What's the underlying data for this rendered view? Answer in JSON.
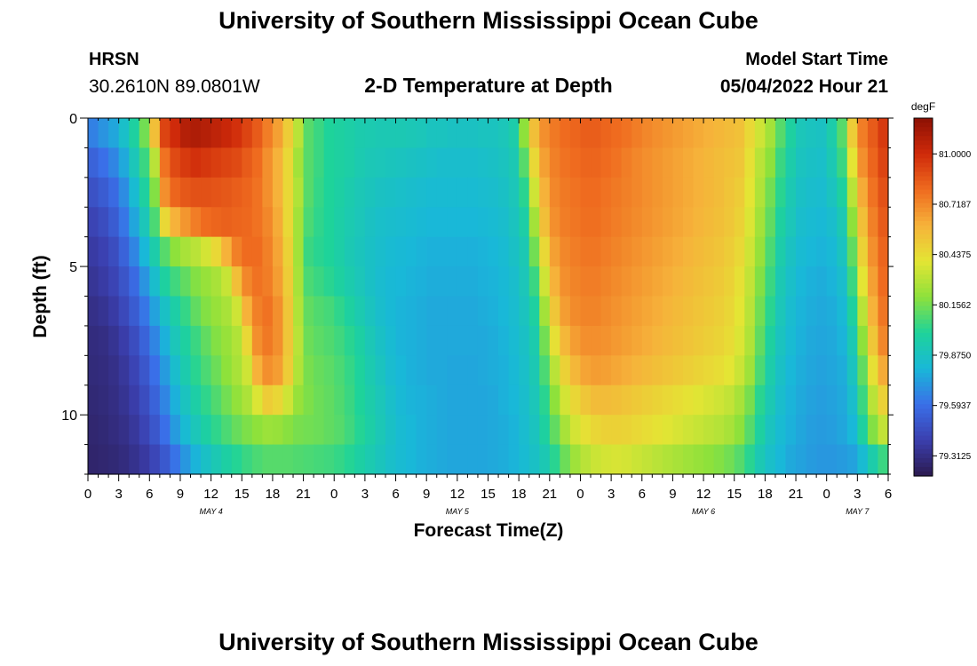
{
  "header": {
    "title": "University of Southern Mississippi Ocean Cube",
    "station": "HRSN",
    "coords": "30.2610N  89.0801W",
    "subtitle": "2-D Temperature at Depth",
    "start_label": "Model Start Time",
    "start_value": "05/04/2022 Hour 21"
  },
  "footer": {
    "title": "University of Southern Mississippi Ocean Cube"
  },
  "chart_data": {
    "type": "heatmap",
    "title": "2-D Temperature at Depth",
    "xlabel": "Forecast Time(Z)",
    "ylabel": "Depth (ft)",
    "x_ticks": [
      "0",
      "3",
      "6",
      "9",
      "12",
      "15",
      "18",
      "21",
      "0",
      "3",
      "6",
      "9",
      "12",
      "15",
      "18",
      "21",
      "0",
      "3",
      "6",
      "9",
      "12",
      "15",
      "18",
      "21",
      "0",
      "3",
      "6"
    ],
    "day_labels": [
      {
        "label": "MAY 4",
        "hour": 12
      },
      {
        "label": "MAY 5",
        "hour": 36
      },
      {
        "label": "MAY 6",
        "hour": 60
      },
      {
        "label": "MAY 7",
        "hour": 75
      }
    ],
    "x_range_hours": [
      0,
      78
    ],
    "y_ticks": [
      0,
      5,
      10
    ],
    "y_range_ft": [
      0,
      12
    ],
    "colorbar": {
      "unit": "degF",
      "ticks": [
        "81.0000",
        "80.7187",
        "80.4375",
        "80.1562",
        "79.8750",
        "79.5937",
        "79.3125"
      ],
      "vmin": 79.2,
      "vmax": 81.2,
      "colors": [
        "#2b1a4f",
        "#3b3fae",
        "#3a6fe8",
        "#19b8d8",
        "#1ed39a",
        "#8ee13b",
        "#e4e534",
        "#f6b23a",
        "#ef6b1f",
        "#cf2a0a",
        "#8c1004"
      ]
    },
    "hours": [
      0,
      1,
      2,
      3,
      4,
      5,
      6,
      7,
      8,
      9,
      10,
      11,
      12,
      13,
      14,
      15,
      16,
      17,
      18,
      19,
      20,
      21,
      22,
      23,
      24,
      25,
      26,
      27,
      28,
      29,
      30,
      31,
      32,
      33,
      34,
      35,
      36,
      37,
      38,
      39,
      40,
      41,
      42,
      43,
      44,
      45,
      46,
      47,
      48,
      49,
      50,
      51,
      52,
      53,
      54,
      55,
      56,
      57,
      58,
      59,
      60,
      61,
      62,
      63,
      64,
      65,
      66,
      67,
      68,
      69,
      70,
      71,
      72,
      73,
      74,
      75,
      76,
      77
    ],
    "depth_levels_ft": [
      0,
      1,
      2,
      3,
      4,
      5,
      6,
      7,
      8,
      9,
      10,
      11
    ],
    "values": [
      [
        79.65,
        79.7,
        79.75,
        79.85,
        79.98,
        80.15,
        80.55,
        80.92,
        81.0,
        81.08,
        81.1,
        81.08,
        81.05,
        81.02,
        80.98,
        80.92,
        80.85,
        80.75,
        80.65,
        80.5,
        80.3,
        80.1,
        80.05,
        80.0,
        79.98,
        79.96,
        79.94,
        79.93,
        79.92,
        79.92,
        79.92,
        79.91,
        79.9,
        79.88,
        79.88,
        79.87,
        79.87,
        79.87,
        79.88,
        79.88,
        79.9,
        79.95,
        80.2,
        80.55,
        80.7,
        80.76,
        80.8,
        80.82,
        80.84,
        80.84,
        80.82,
        80.8,
        80.78,
        80.75,
        80.72,
        80.7,
        80.68,
        80.66,
        80.64,
        80.62,
        80.6,
        80.58,
        80.56,
        80.54,
        80.45,
        80.35,
        80.25,
        80.1,
        79.98,
        79.9,
        79.88,
        79.87,
        79.95,
        80.1,
        80.5,
        80.75,
        80.85,
        80.95
      ],
      [
        79.55,
        79.6,
        79.66,
        79.76,
        79.9,
        80.05,
        80.3,
        80.78,
        80.9,
        80.95,
        80.98,
        80.96,
        80.94,
        80.92,
        80.9,
        80.85,
        80.8,
        80.7,
        80.6,
        80.45,
        80.25,
        80.1,
        80.05,
        80.0,
        79.98,
        79.96,
        79.93,
        79.91,
        79.9,
        79.89,
        79.88,
        79.87,
        79.86,
        79.85,
        79.84,
        79.84,
        79.84,
        79.84,
        79.85,
        79.86,
        79.88,
        79.92,
        80.1,
        80.45,
        80.65,
        80.74,
        80.78,
        80.8,
        80.82,
        80.82,
        80.8,
        80.78,
        80.75,
        80.72,
        80.7,
        80.68,
        80.66,
        80.64,
        80.62,
        80.6,
        80.58,
        80.56,
        80.54,
        80.52,
        80.42,
        80.3,
        80.2,
        80.05,
        79.95,
        79.88,
        79.86,
        79.85,
        79.92,
        80.05,
        80.4,
        80.7,
        80.82,
        80.92
      ],
      [
        79.48,
        79.52,
        79.58,
        79.68,
        79.82,
        79.98,
        80.18,
        80.7,
        80.82,
        80.86,
        80.88,
        80.88,
        80.87,
        80.86,
        80.84,
        80.82,
        80.78,
        80.7,
        80.6,
        80.45,
        80.28,
        80.1,
        80.04,
        80.0,
        79.97,
        79.94,
        79.91,
        79.89,
        79.87,
        79.86,
        79.85,
        79.84,
        79.83,
        79.82,
        79.82,
        79.82,
        79.82,
        79.82,
        79.83,
        79.84,
        79.86,
        79.9,
        80.02,
        80.35,
        80.6,
        80.72,
        80.76,
        80.78,
        80.8,
        80.8,
        80.78,
        80.76,
        80.74,
        80.72,
        80.7,
        80.68,
        80.66,
        80.64,
        80.62,
        80.6,
        80.58,
        80.56,
        80.53,
        80.5,
        80.4,
        80.28,
        80.15,
        80.02,
        79.92,
        79.86,
        79.84,
        79.83,
        79.88,
        79.98,
        80.3,
        80.62,
        80.78,
        80.88
      ],
      [
        79.42,
        79.46,
        79.52,
        79.62,
        79.75,
        79.9,
        80.08,
        80.45,
        80.6,
        80.68,
        80.75,
        80.8,
        80.82,
        80.83,
        80.82,
        80.81,
        80.78,
        80.72,
        80.62,
        80.45,
        80.25,
        80.08,
        80.03,
        80.0,
        79.96,
        79.93,
        79.9,
        79.87,
        79.85,
        79.84,
        79.83,
        79.82,
        79.81,
        79.8,
        79.8,
        79.8,
        79.8,
        79.8,
        79.81,
        79.82,
        79.84,
        79.88,
        79.96,
        80.25,
        80.55,
        80.7,
        80.75,
        80.77,
        80.79,
        80.79,
        80.77,
        80.75,
        80.73,
        80.71,
        80.69,
        80.67,
        80.65,
        80.63,
        80.61,
        80.59,
        80.57,
        80.55,
        80.52,
        80.48,
        80.38,
        80.25,
        80.12,
        79.98,
        79.9,
        79.84,
        79.82,
        79.81,
        79.84,
        79.92,
        80.2,
        80.55,
        80.74,
        80.85
      ],
      [
        79.38,
        79.41,
        79.46,
        79.55,
        79.66,
        79.8,
        79.95,
        80.1,
        80.2,
        80.26,
        80.3,
        80.36,
        80.45,
        80.6,
        80.74,
        80.8,
        80.8,
        80.74,
        80.64,
        80.48,
        80.25,
        80.05,
        80.02,
        80.0,
        79.96,
        79.92,
        79.89,
        79.86,
        79.84,
        79.82,
        79.81,
        79.8,
        79.79,
        79.78,
        79.78,
        79.78,
        79.78,
        79.78,
        79.79,
        79.8,
        79.82,
        79.86,
        79.92,
        80.15,
        80.45,
        80.65,
        80.72,
        80.75,
        80.77,
        80.77,
        80.75,
        80.73,
        80.71,
        80.69,
        80.67,
        80.65,
        80.63,
        80.61,
        80.59,
        80.57,
        80.55,
        80.53,
        80.5,
        80.45,
        80.35,
        80.22,
        80.08,
        79.95,
        79.87,
        79.82,
        79.8,
        79.79,
        79.81,
        79.88,
        80.12,
        80.48,
        80.7,
        80.82
      ],
      [
        79.35,
        79.38,
        79.42,
        79.49,
        79.58,
        79.7,
        79.84,
        79.98,
        80.06,
        80.12,
        80.18,
        80.22,
        80.26,
        80.33,
        80.55,
        80.72,
        80.78,
        80.75,
        80.66,
        80.5,
        80.26,
        80.08,
        80.05,
        80.02,
        79.98,
        79.94,
        79.9,
        79.86,
        79.83,
        79.81,
        79.8,
        79.79,
        79.78,
        79.77,
        79.77,
        79.77,
        79.77,
        79.77,
        79.78,
        79.79,
        79.81,
        79.84,
        79.9,
        80.05,
        80.35,
        80.6,
        80.7,
        80.73,
        80.75,
        80.75,
        80.73,
        80.71,
        80.69,
        80.67,
        80.65,
        80.63,
        80.61,
        80.59,
        80.57,
        80.55,
        80.53,
        80.51,
        80.48,
        80.42,
        80.32,
        80.18,
        80.05,
        79.92,
        79.85,
        79.8,
        79.78,
        79.77,
        79.79,
        79.84,
        80.05,
        80.4,
        80.65,
        80.8
      ],
      [
        79.32,
        79.34,
        79.38,
        79.44,
        79.52,
        79.62,
        79.74,
        79.86,
        79.96,
        80.04,
        80.12,
        80.18,
        80.22,
        80.26,
        80.35,
        80.6,
        80.74,
        80.78,
        80.7,
        80.52,
        80.28,
        80.12,
        80.09,
        80.07,
        80.03,
        79.98,
        79.93,
        79.88,
        79.84,
        79.81,
        79.79,
        79.78,
        79.77,
        79.76,
        79.76,
        79.76,
        79.76,
        79.76,
        79.77,
        79.78,
        79.8,
        79.83,
        79.88,
        79.98,
        80.25,
        80.52,
        80.66,
        80.71,
        80.73,
        80.73,
        80.71,
        80.69,
        80.67,
        80.65,
        80.63,
        80.61,
        80.59,
        80.57,
        80.55,
        80.53,
        80.51,
        80.49,
        80.46,
        80.4,
        80.3,
        80.15,
        80.02,
        79.9,
        79.83,
        79.79,
        79.77,
        79.76,
        79.77,
        79.81,
        79.98,
        80.3,
        80.6,
        80.77
      ],
      [
        79.3,
        79.31,
        79.34,
        79.39,
        79.46,
        79.55,
        79.66,
        79.78,
        79.9,
        79.98,
        80.05,
        80.12,
        80.18,
        80.22,
        80.28,
        80.45,
        80.7,
        80.76,
        80.7,
        80.52,
        80.3,
        80.14,
        80.11,
        80.09,
        80.06,
        80.02,
        79.97,
        79.91,
        79.86,
        79.82,
        79.79,
        79.78,
        79.77,
        79.76,
        79.76,
        79.76,
        79.76,
        79.76,
        79.76,
        79.77,
        79.79,
        79.82,
        79.86,
        79.94,
        80.15,
        80.42,
        80.58,
        80.66,
        80.7,
        80.7,
        80.69,
        80.67,
        80.65,
        80.63,
        80.61,
        80.59,
        80.57,
        80.55,
        80.53,
        80.51,
        80.49,
        80.47,
        80.44,
        80.38,
        80.28,
        80.12,
        79.98,
        79.88,
        79.82,
        79.78,
        79.76,
        79.75,
        79.76,
        79.79,
        79.92,
        80.2,
        80.52,
        80.72
      ],
      [
        79.29,
        79.3,
        79.32,
        79.36,
        79.42,
        79.5,
        79.6,
        79.72,
        79.84,
        79.94,
        80.02,
        80.08,
        80.14,
        80.2,
        80.26,
        80.35,
        80.6,
        80.7,
        80.66,
        80.5,
        80.28,
        80.16,
        80.13,
        80.11,
        80.08,
        80.04,
        79.99,
        79.93,
        79.88,
        79.83,
        79.8,
        79.78,
        79.77,
        79.76,
        79.76,
        79.75,
        79.75,
        79.75,
        79.76,
        79.77,
        79.78,
        79.81,
        79.85,
        79.92,
        80.08,
        80.3,
        80.48,
        80.58,
        80.64,
        80.66,
        80.65,
        80.63,
        80.61,
        80.59,
        80.57,
        80.55,
        80.53,
        80.51,
        80.49,
        80.47,
        80.45,
        80.43,
        80.4,
        80.34,
        80.24,
        80.08,
        79.95,
        79.86,
        79.8,
        79.77,
        79.75,
        79.74,
        79.75,
        79.77,
        79.88,
        80.12,
        80.42,
        80.62
      ],
      [
        79.28,
        79.29,
        79.31,
        79.34,
        79.39,
        79.46,
        79.55,
        79.66,
        79.78,
        79.88,
        79.96,
        80.03,
        80.09,
        80.15,
        80.21,
        80.27,
        80.38,
        80.5,
        80.46,
        80.35,
        80.22,
        80.17,
        80.14,
        80.12,
        80.09,
        80.05,
        80.0,
        79.95,
        79.9,
        79.85,
        79.81,
        79.79,
        79.78,
        79.77,
        79.76,
        79.75,
        79.75,
        79.75,
        79.75,
        79.76,
        79.78,
        79.8,
        79.84,
        79.9,
        80.02,
        80.2,
        80.36,
        80.46,
        80.52,
        80.56,
        80.56,
        80.55,
        80.53,
        80.51,
        80.49,
        80.47,
        80.45,
        80.43,
        80.41,
        80.39,
        80.37,
        80.35,
        80.32,
        80.26,
        80.16,
        80.02,
        79.92,
        79.84,
        79.79,
        79.76,
        79.74,
        79.73,
        79.74,
        79.76,
        79.84,
        80.05,
        80.3,
        80.48
      ],
      [
        79.27,
        79.28,
        79.3,
        79.32,
        79.36,
        79.42,
        79.5,
        79.6,
        79.72,
        79.82,
        79.9,
        79.97,
        80.03,
        80.08,
        80.13,
        80.17,
        80.2,
        80.23,
        80.22,
        80.19,
        80.16,
        80.15,
        80.14,
        80.12,
        80.1,
        80.06,
        80.01,
        79.96,
        79.91,
        79.86,
        79.82,
        79.8,
        79.78,
        79.77,
        79.76,
        79.75,
        79.75,
        79.75,
        79.75,
        79.76,
        79.77,
        79.79,
        79.83,
        79.88,
        79.98,
        80.12,
        80.26,
        80.36,
        80.42,
        80.46,
        80.48,
        80.48,
        80.47,
        80.45,
        80.43,
        80.41,
        80.39,
        80.37,
        80.35,
        80.33,
        80.31,
        80.29,
        80.26,
        80.2,
        80.1,
        79.98,
        79.88,
        79.82,
        79.78,
        79.75,
        79.73,
        79.72,
        79.73,
        79.75,
        79.8,
        79.98,
        80.18,
        80.32
      ],
      [
        79.26,
        79.27,
        79.28,
        79.3,
        79.33,
        79.37,
        79.43,
        79.51,
        79.61,
        79.71,
        79.79,
        79.86,
        79.92,
        79.97,
        80.01,
        80.05,
        80.08,
        80.1,
        80.1,
        80.1,
        80.09,
        80.08,
        80.07,
        80.06,
        80.04,
        80.01,
        79.97,
        79.93,
        79.89,
        79.85,
        79.82,
        79.8,
        79.78,
        79.77,
        79.76,
        79.75,
        79.75,
        79.75,
        79.75,
        79.76,
        79.77,
        79.79,
        79.82,
        79.86,
        79.92,
        80.02,
        80.14,
        80.24,
        80.3,
        80.34,
        80.36,
        80.37,
        80.36,
        80.34,
        80.32,
        80.3,
        80.28,
        80.26,
        80.24,
        80.22,
        80.2,
        80.18,
        80.15,
        80.1,
        80.02,
        79.92,
        79.85,
        79.8,
        79.76,
        79.74,
        79.72,
        79.71,
        79.71,
        79.72,
        79.74,
        79.82,
        79.95,
        80.05
      ]
    ]
  }
}
